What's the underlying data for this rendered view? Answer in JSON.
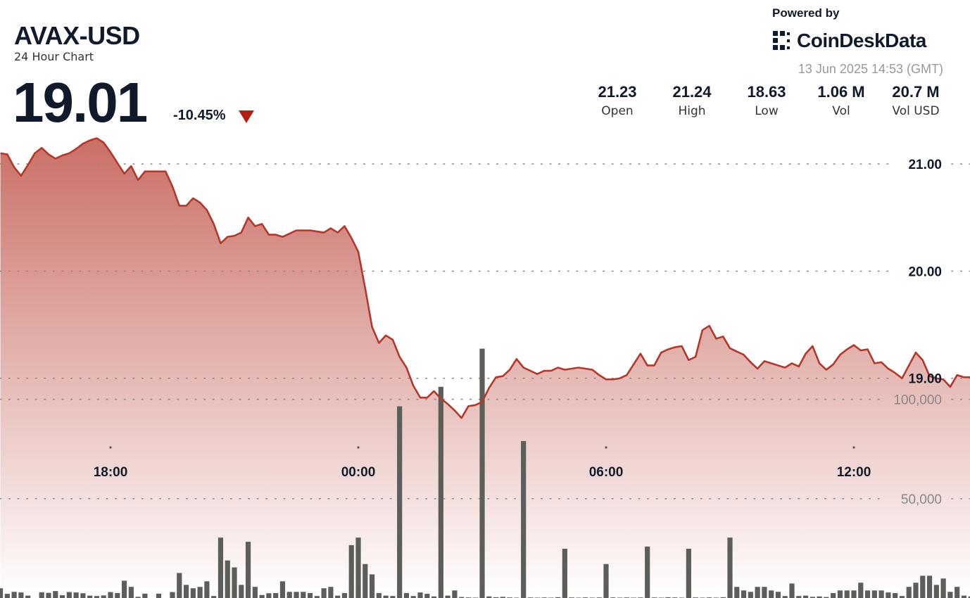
{
  "chart_data": {
    "type": "line",
    "title": "AVAX-USD",
    "subtitle": "24 Hour Chart",
    "categories": [
      null,
      null,
      null,
      null,
      null,
      null,
      null,
      null,
      null,
      null,
      null,
      null,
      null,
      null,
      null,
      null,
      "18:00",
      null,
      null,
      null,
      null,
      null,
      null,
      null,
      null,
      null,
      null,
      null,
      null,
      null,
      null,
      null,
      null,
      null,
      null,
      null,
      null,
      null,
      null,
      null,
      null,
      null,
      null,
      null,
      null,
      null,
      null,
      null,
      null,
      null,
      null,
      null,
      "00:00",
      null,
      null,
      null,
      null,
      null,
      null,
      null,
      null,
      null,
      null,
      null,
      null,
      null,
      null,
      null,
      null,
      null,
      null,
      null,
      null,
      null,
      null,
      null,
      null,
      null,
      null,
      null,
      null,
      null,
      null,
      null,
      null,
      null,
      null,
      null,
      "06:00",
      null,
      null,
      null,
      null,
      null,
      null,
      null,
      null,
      null,
      null,
      null,
      null,
      null,
      null,
      null,
      null,
      null,
      null,
      null,
      null,
      null,
      null,
      null,
      null,
      null,
      null,
      null,
      null,
      null,
      null,
      null,
      null,
      null,
      null,
      null,
      "12:00",
      null,
      null,
      null,
      null,
      null,
      null,
      null,
      null,
      null,
      null,
      null,
      null,
      null,
      null,
      null,
      null,
      null
    ],
    "series": [
      {
        "type": "line",
        "color": "#b5372a",
        "values": [
          21.1,
          21.09,
          20.97,
          20.89,
          20.99,
          21.1,
          21.15,
          21.09,
          21.05,
          21.08,
          21.1,
          21.14,
          21.19,
          21.22,
          21.24,
          21.2,
          21.11,
          21.01,
          20.91,
          20.98,
          20.85,
          20.93,
          20.93,
          20.93,
          20.93,
          20.79,
          20.61,
          20.61,
          20.68,
          20.64,
          20.57,
          20.44,
          20.26,
          20.32,
          20.33,
          20.36,
          20.5,
          20.42,
          20.44,
          20.34,
          20.34,
          20.32,
          20.35,
          20.38,
          20.38,
          20.38,
          20.37,
          20.36,
          20.4,
          20.36,
          20.42,
          20.31,
          20.18,
          19.84,
          19.48,
          19.33,
          19.4,
          19.36,
          19.2,
          19.1,
          18.93,
          18.82,
          18.82,
          18.88,
          18.81,
          18.76,
          18.7,
          18.63,
          18.74,
          18.75,
          18.78,
          18.91,
          19.01,
          19.02,
          19.08,
          19.18,
          19.1,
          19.07,
          19.04,
          19.07,
          19.07,
          19.1,
          19.08,
          19.09,
          19.1,
          19.09,
          19.08,
          19.03,
          18.99,
          18.99,
          19.0,
          19.03,
          19.13,
          19.23,
          19.12,
          19.12,
          19.24,
          19.27,
          19.29,
          19.3,
          19.17,
          19.2,
          19.45,
          19.49,
          19.37,
          19.39,
          19.28,
          19.25,
          19.22,
          19.15,
          19.09,
          19.16,
          19.14,
          19.12,
          19.1,
          19.14,
          19.11,
          19.23,
          19.3,
          19.14,
          19.08,
          19.13,
          19.22,
          19.27,
          19.31,
          19.26,
          19.27,
          19.14,
          19.15,
          19.09,
          19.05,
          19.0,
          19.12,
          19.24,
          19.17,
          19.02,
          19.0,
          18.99,
          18.92,
          19.03,
          19.01,
          19.01
        ]
      },
      {
        "type": "bar",
        "axis": "y2",
        "color": "#5c5f59",
        "values": [
          4900,
          2100,
          3100,
          2800,
          1200,
          0,
          2900,
          2600,
          3500,
          1400,
          3000,
          2800,
          2400,
          1200,
          1000,
          1300,
          3000,
          2500,
          8700,
          5600,
          600,
          2200,
          0,
          2200,
          0,
          3000,
          12600,
          6600,
          4900,
          5600,
          8400,
          1000,
          30400,
          18900,
          15400,
          6600,
          28300,
          5600,
          1500,
          2400,
          2500,
          8400,
          3100,
          3100,
          3100,
          2500,
          1000,
          4900,
          5600,
          1200,
          2500,
          26600,
          30400,
          17100,
          11900,
          2500,
          1200,
          1000,
          96500,
          2500,
          1000,
          2800,
          2100,
          800,
          106300,
          1200,
          3800,
          500,
          300,
          200,
          125500,
          800,
          400,
          600,
          300,
          200,
          79000,
          300,
          200,
          300,
          200,
          400,
          24800,
          300,
          200,
          300,
          200,
          300,
          17100,
          300,
          200,
          300,
          200,
          300,
          25900,
          300,
          200,
          400,
          300,
          200,
          24800,
          300,
          200,
          300,
          200,
          400,
          30400,
          5600,
          3800,
          3100,
          5600,
          5600,
          3800,
          3100,
          1000,
          7300,
          1000,
          1200,
          600,
          800,
          500,
          2500,
          3800,
          3800,
          3800,
          7700,
          3800,
          3800,
          3800,
          2800,
          2500,
          1000,
          5600,
          7700,
          11200,
          11200,
          6600,
          9800,
          3100,
          5600,
          1200,
          800
        ]
      }
    ],
    "ylim": [
      16.95,
      22.53
    ],
    "yticks": [
      {
        "value": 19,
        "label": "19.00"
      },
      {
        "value": 20,
        "label": "20.00"
      },
      {
        "value": 21,
        "label": "21.00"
      }
    ],
    "y2lim": [
      0,
      301000
    ],
    "y2ticks": [
      {
        "value": 50000,
        "label": "50,000"
      },
      {
        "value": 100000,
        "label": "100,000"
      }
    ],
    "grid": true
  },
  "header": {
    "price": "19.01",
    "change": "-10.45%",
    "powered_by": "Powered by",
    "brand": "CoinDeskData",
    "timestamp": "13 Jun 2025 14:53 (GMT)",
    "stats": [
      {
        "value": "21.23",
        "label": "Open"
      },
      {
        "value": "21.24",
        "label": "High"
      },
      {
        "value": "18.63",
        "label": "Low"
      },
      {
        "value": "1.06 M",
        "label": "Vol"
      },
      {
        "value": "20.7 M",
        "label": "Vol USD"
      }
    ]
  }
}
